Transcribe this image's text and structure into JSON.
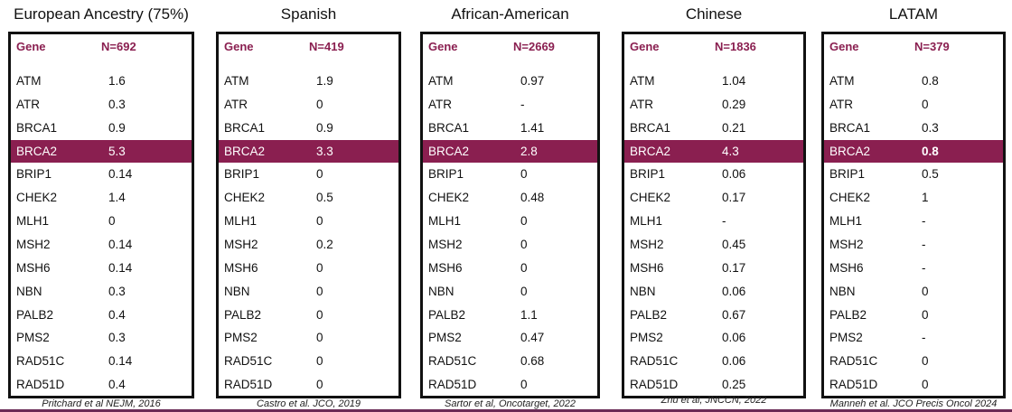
{
  "panels": [
    {
      "title": "European Ancestry (75%)",
      "header": [
        "Gene",
        "N=692"
      ],
      "citation": "Pritchard et al NEJM, 2016",
      "rows": [
        [
          "ATM",
          "1.6"
        ],
        [
          "ATR",
          "0.3"
        ],
        [
          "BRCA1",
          "0.9"
        ],
        [
          "BRCA2",
          "5.3"
        ],
        [
          "BRIP1",
          "0.14"
        ],
        [
          "CHEK2",
          "1.4"
        ],
        [
          "MLH1",
          "0"
        ],
        [
          "MSH2",
          "0.14"
        ],
        [
          "MSH6",
          "0.14"
        ],
        [
          "NBN",
          "0.3"
        ],
        [
          "PALB2",
          "0.4"
        ],
        [
          "PMS2",
          "0.3"
        ],
        [
          "RAD51C",
          "0.14"
        ],
        [
          "RAD51D",
          "0.4"
        ]
      ]
    },
    {
      "title": "Spanish",
      "header": [
        "Gene",
        "N=419"
      ],
      "citation": "Castro et al. JCO, 2019",
      "rows": [
        [
          "ATM",
          "1.9"
        ],
        [
          "ATR",
          "0"
        ],
        [
          "BRCA1",
          "0.9"
        ],
        [
          "BRCA2",
          "3.3"
        ],
        [
          "BRIP1",
          "0"
        ],
        [
          "CHEK2",
          "0.5"
        ],
        [
          "MLH1",
          "0"
        ],
        [
          "MSH2",
          "0.2"
        ],
        [
          "MSH6",
          "0"
        ],
        [
          "NBN",
          "0"
        ],
        [
          "PALB2",
          "0"
        ],
        [
          "PMS2",
          "0"
        ],
        [
          "RAD51C",
          "0"
        ],
        [
          "RAD51D",
          "0"
        ]
      ]
    },
    {
      "title": "African-American",
      "header": [
        "Gene",
        "N=2669"
      ],
      "citation": "Sartor et al, Oncotarget, 2022",
      "rows": [
        [
          "ATM",
          "0.97"
        ],
        [
          "ATR",
          "-"
        ],
        [
          "BRCA1",
          "1.41"
        ],
        [
          "BRCA2",
          "2.8"
        ],
        [
          "BRIP1",
          "0"
        ],
        [
          "CHEK2",
          "0.48"
        ],
        [
          "MLH1",
          "0"
        ],
        [
          "MSH2",
          "0"
        ],
        [
          "MSH6",
          "0"
        ],
        [
          "NBN",
          "0"
        ],
        [
          "PALB2",
          "1.1"
        ],
        [
          "PMS2",
          "0.47"
        ],
        [
          "RAD51C",
          "0.68"
        ],
        [
          "RAD51D",
          "0"
        ]
      ]
    },
    {
      "title": "Chinese",
      "header": [
        "Gene",
        "N=1836"
      ],
      "citation": "Zhu et al, JNCCN, 2022",
      "rows": [
        [
          "ATM",
          "1.04"
        ],
        [
          "ATR",
          "0.29"
        ],
        [
          "BRCA1",
          "0.21"
        ],
        [
          "BRCA2",
          "4.3"
        ],
        [
          "BRIP1",
          "0.06"
        ],
        [
          "CHEK2",
          "0.17"
        ],
        [
          "MLH1",
          "-"
        ],
        [
          "MSH2",
          "0.45"
        ],
        [
          "MSH6",
          "0.17"
        ],
        [
          "NBN",
          "0.06"
        ],
        [
          "PALB2",
          "0.67"
        ],
        [
          "PMS2",
          "0.06"
        ],
        [
          "RAD51C",
          "0.06"
        ],
        [
          "RAD51D",
          "0.25"
        ]
      ]
    },
    {
      "title": "LATAM",
      "header": [
        "Gene",
        "N=379"
      ],
      "citation": "Manneh et al. JCO Precis Oncol 2024",
      "rows": [
        [
          "ATM",
          "0.8"
        ],
        [
          "ATR",
          "0"
        ],
        [
          "BRCA1",
          "0.3"
        ],
        [
          "BRCA2",
          "0.8"
        ],
        [
          "BRIP1",
          "0.5"
        ],
        [
          "CHEK2",
          "1"
        ],
        [
          "MLH1",
          "-"
        ],
        [
          "MSH2",
          "-"
        ],
        [
          "MSH6",
          "-"
        ],
        [
          "NBN",
          "0"
        ],
        [
          "PALB2",
          "0"
        ],
        [
          "PMS2",
          "-"
        ],
        [
          "RAD51C",
          "0"
        ],
        [
          "RAD51D",
          "0"
        ]
      ]
    }
  ]
}
